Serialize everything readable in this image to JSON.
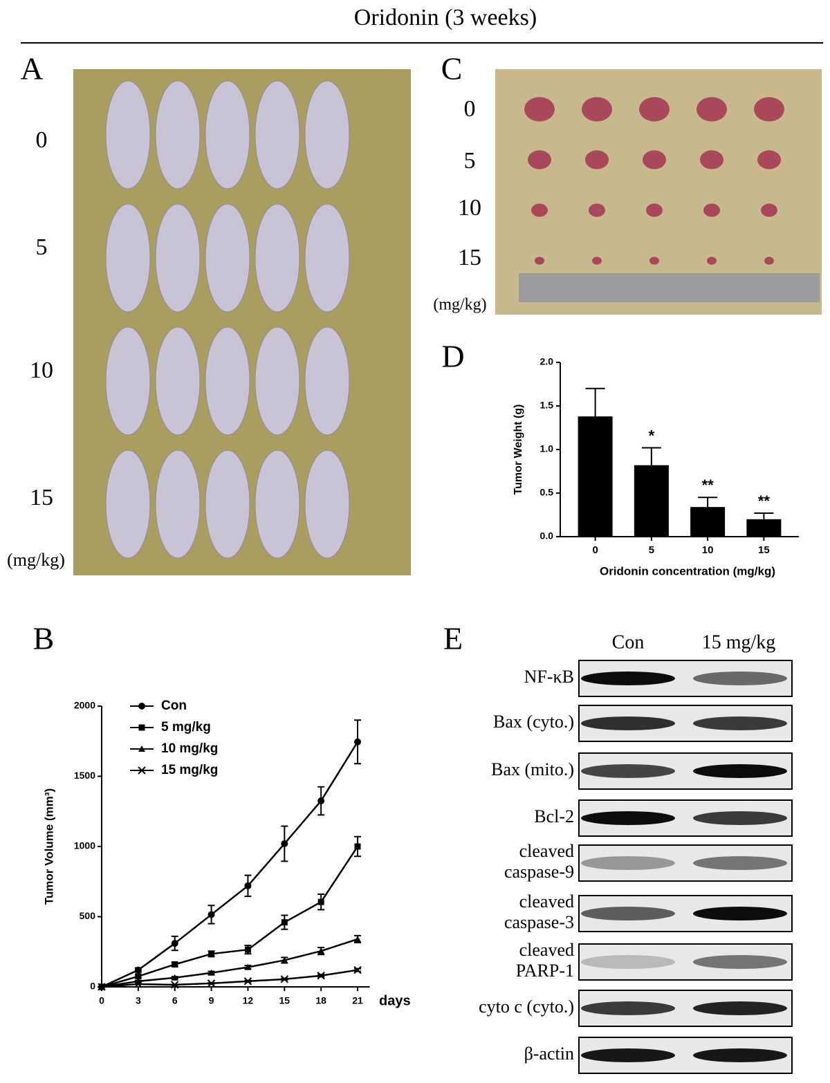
{
  "title": "Oridonin (3 weeks)",
  "panel_a": {
    "label": "A",
    "rows": [
      "0",
      "5",
      "10",
      "15"
    ],
    "unit": "(mg/kg)"
  },
  "panel_c": {
    "label": "C",
    "rows": [
      "0",
      "5",
      "10",
      "15"
    ],
    "unit": "(mg/kg)"
  },
  "chart_data": [
    {
      "type": "bar",
      "panel_label": "D",
      "ylabel": "Tumor Weight (g)",
      "xlabel": "Oridonin concentration (mg/kg)",
      "categories": [
        "0",
        "5",
        "10",
        "15"
      ],
      "values": [
        1.38,
        0.82,
        0.34,
        0.2
      ],
      "errors": [
        0.32,
        0.2,
        0.11,
        0.07
      ],
      "annotations": [
        null,
        "*",
        "**",
        "**"
      ],
      "color": "#000000",
      "ylim": [
        0,
        2
      ],
      "yticks": [
        {
          "value": 0,
          "label": "0.0"
        },
        {
          "value": 0.5,
          "label": "0.5"
        },
        {
          "value": 1,
          "label": "1.0"
        },
        {
          "value": 1.5,
          "label": "1.5"
        },
        {
          "value": 2,
          "label": "2.0"
        }
      ]
    },
    {
      "type": "line",
      "panel_label": "B",
      "ylabel": "Tumor Volume (mm³)",
      "xlabel": "days",
      "x": [
        0,
        3,
        6,
        9,
        12,
        15,
        18,
        21
      ],
      "series": [
        {
          "name": "Con",
          "color": "#000000",
          "marker": "circle",
          "values": [
            0,
            120,
            310,
            515,
            720,
            1020,
            1325,
            1745
          ],
          "errors": [
            0,
            15,
            50,
            65,
            75,
            125,
            100,
            155
          ]
        },
        {
          "name": "5 mg/kg",
          "color": "#000000",
          "marker": "square",
          "values": [
            0,
            75,
            160,
            235,
            265,
            460,
            605,
            1000
          ],
          "errors": [
            0,
            10,
            15,
            20,
            30,
            50,
            55,
            70
          ]
        },
        {
          "name": "10 mg/kg",
          "color": "#000000",
          "marker": "triangle",
          "values": [
            0,
            40,
            65,
            100,
            140,
            190,
            255,
            340
          ],
          "errors": [
            0,
            5,
            8,
            10,
            12,
            20,
            25,
            25
          ]
        },
        {
          "name": "15 mg/kg",
          "color": "#000000",
          "marker": "x",
          "values": [
            0,
            20,
            15,
            25,
            40,
            55,
            80,
            120
          ],
          "errors": [
            0,
            3,
            3,
            4,
            5,
            6,
            8,
            10
          ]
        }
      ],
      "xlim": [
        0,
        22
      ],
      "xticks": [
        0,
        3,
        6,
        9,
        12,
        15,
        18,
        21
      ],
      "ylim": [
        0,
        2000
      ],
      "yticks": [
        0,
        500,
        1000,
        1500,
        2000
      ],
      "legend": "upper left"
    }
  ],
  "panel_e": {
    "label": "E",
    "columns": [
      "Con",
      "15 mg/kg"
    ],
    "rows": [
      [
        "NF-κB"
      ],
      [
        "Bax (cyto.)"
      ],
      [
        "Bax (mito.)"
      ],
      [
        "Bcl-2"
      ],
      [
        "cleaved",
        "caspase-9"
      ],
      [
        "cleaved",
        "caspase-3"
      ],
      [
        "cleaved",
        "PARP-1"
      ],
      [
        "cyto c (cyto.)"
      ],
      [
        "β-actin"
      ]
    ]
  }
}
